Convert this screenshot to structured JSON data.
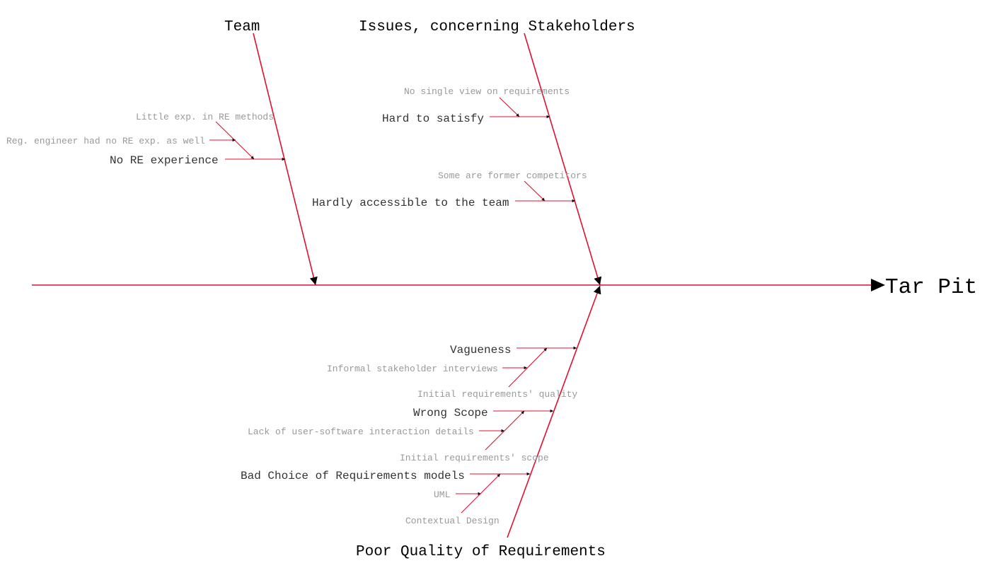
{
  "effect": "Tar Pit",
  "colors": {
    "line": "#e0102f",
    "arrow": "#000000",
    "subtext": "#999999"
  },
  "categories": [
    {
      "label": "Team",
      "causes": [
        {
          "label": "No RE experience",
          "subcauses": [
            "Little exp. in RE methods",
            "Reg. engineer had no RE exp. as well"
          ]
        }
      ]
    },
    {
      "label": "Issues, concerning Stakeholders",
      "causes": [
        {
          "label": "Hard to satisfy",
          "subcauses": [
            "No single view on requirements"
          ]
        },
        {
          "label": "Hardly accessible to the team",
          "subcauses": [
            "Some are former competitors"
          ]
        }
      ]
    },
    {
      "label": "Poor Quality of Requirements",
      "causes": [
        {
          "label": "Vagueness",
          "subcauses": [
            "Informal stakeholder interviews",
            "Initial requirements' quality"
          ]
        },
        {
          "label": "Wrong Scope",
          "subcauses": [
            "Lack of user-software interaction details",
            "Initial requirements' scope"
          ]
        },
        {
          "label": "Bad Choice of Requirements models",
          "subcauses": [
            "UML",
            "Contextual Design"
          ]
        }
      ]
    }
  ]
}
